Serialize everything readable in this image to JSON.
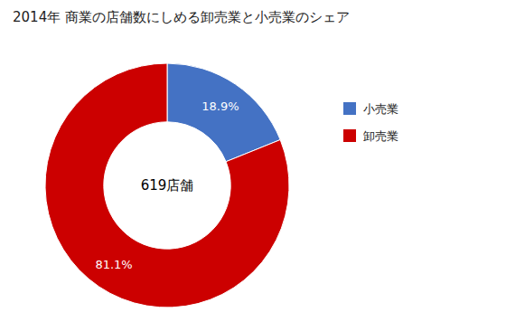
{
  "chart_data": {
    "type": "donut",
    "title": "2014年 商業の店舗数にしめる卸売業と小売業のシェア",
    "categories": [
      "小売業",
      "卸売業"
    ],
    "values": [
      18.9,
      81.1
    ],
    "value_labels": [
      "18.9%",
      "81.1%"
    ],
    "colors": [
      "#4472C4",
      "#CC0000"
    ],
    "annotations": [
      "619店舗"
    ],
    "data_labels": true,
    "legend": "right"
  }
}
